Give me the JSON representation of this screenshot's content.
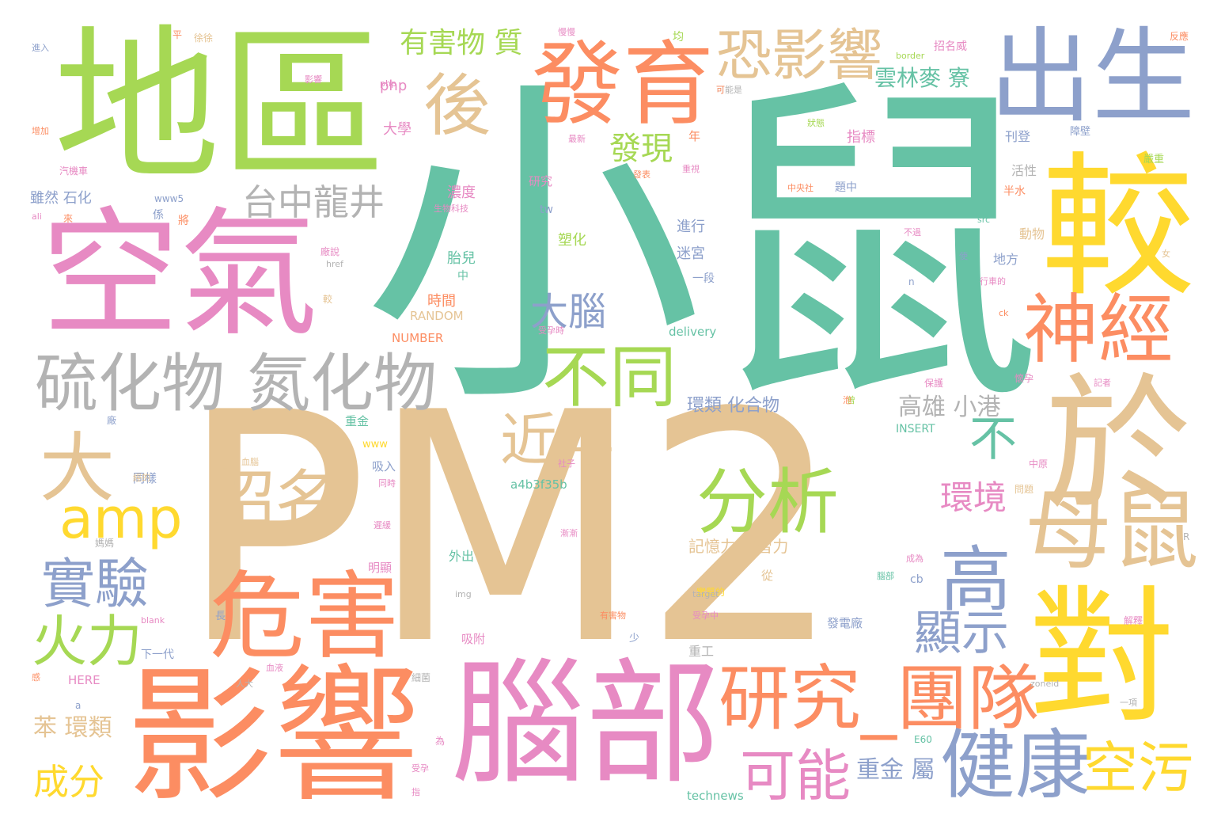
{
  "palette": {
    "green": "#66c2a5",
    "orange": "#fc8d62",
    "blue": "#8da0cb",
    "pink": "#e78ac3",
    "lime": "#a6d854",
    "yellow": "#ffd92f",
    "tan": "#e5c494",
    "gray": "#b3b3b3"
  },
  "words": [
    {
      "text": "PM2",
      "color": "tan"
    },
    {
      "text": "小鼠",
      "color": "green"
    },
    {
      "text": "地區",
      "color": "lime"
    },
    {
      "text": "空氣",
      "color": "pink"
    },
    {
      "text": "影響",
      "color": "orange"
    },
    {
      "text": "腦部",
      "color": "pink"
    },
    {
      "text": "較",
      "color": "yellow"
    },
    {
      "text": "於",
      "color": "tan"
    },
    {
      "text": "對",
      "color": "yellow"
    },
    {
      "text": "出生",
      "color": "blue"
    },
    {
      "text": "危害",
      "color": "orange"
    },
    {
      "text": "發育",
      "color": "orange"
    },
    {
      "text": "硫化物",
      "color": "gray"
    },
    {
      "text": "氮化物",
      "color": "gray"
    },
    {
      "text": "恐影響",
      "color": "tan"
    },
    {
      "text": "後",
      "color": "tan"
    },
    {
      "text": "神經",
      "color": "orange"
    },
    {
      "text": "母鼠",
      "color": "tan"
    },
    {
      "text": "研究_團隊",
      "color": "orange"
    },
    {
      "text": "健康",
      "color": "blue"
    },
    {
      "text": "分析",
      "color": "lime"
    },
    {
      "text": "不同",
      "color": "lime"
    },
    {
      "text": "高",
      "color": "blue"
    },
    {
      "text": "大",
      "color": "tan"
    },
    {
      "text": "amp",
      "color": "yellow"
    },
    {
      "text": "招名",
      "color": "tan"
    },
    {
      "text": "近年",
      "color": "tan"
    },
    {
      "text": "實驗",
      "color": "blue"
    },
    {
      "text": "火力",
      "color": "lime"
    },
    {
      "text": "台中龍井",
      "color": "gray"
    },
    {
      "text": "可能",
      "color": "pink"
    },
    {
      "text": "空污",
      "color": "yellow"
    },
    {
      "text": "顯示",
      "color": "blue"
    },
    {
      "text": "大腦",
      "color": "blue"
    },
    {
      "text": "環境",
      "color": "pink"
    },
    {
      "text": "不",
      "color": "green"
    },
    {
      "text": "發現",
      "color": "lime"
    },
    {
      "text": "有害物 質",
      "color": "lime"
    },
    {
      "text": "雲林麥 寮",
      "color": "green"
    },
    {
      "text": "高雄 小港",
      "color": "gray"
    },
    {
      "text": "成分",
      "color": "yellow"
    },
    {
      "text": "重金 屬",
      "color": "blue"
    },
    {
      "text": "苯 環類",
      "color": "tan"
    },
    {
      "text": "記憶力 學習力",
      "color": "tan"
    },
    {
      "text": "環類 化合物",
      "color": "blue"
    },
    {
      "text": "時間",
      "color": "orange"
    },
    {
      "text": "濃度",
      "color": "pink"
    },
    {
      "text": "指標",
      "color": "pink"
    },
    {
      "text": "刊登",
      "color": "blue"
    },
    {
      "text": "雖然 石化",
      "color": "blue"
    },
    {
      "text": "php",
      "color": "pink"
    },
    {
      "text": "大學",
      "color": "pink"
    },
    {
      "text": "胎兒",
      "color": "green"
    },
    {
      "text": "塑化",
      "color": "lime"
    },
    {
      "text": "進行",
      "color": "blue"
    },
    {
      "text": "迷宮",
      "color": "blue"
    },
    {
      "text": "動物",
      "color": "tan"
    },
    {
      "text": "地方",
      "color": "blue"
    },
    {
      "text": "活性",
      "color": "gray"
    },
    {
      "text": "研究",
      "color": "pink"
    },
    {
      "text": "RANDOM",
      "color": "tan"
    },
    {
      "text": "NUMBER",
      "color": "orange"
    },
    {
      "text": "delivery",
      "color": "green"
    },
    {
      "text": "a4b3f35b",
      "color": "green"
    },
    {
      "text": "INSERT",
      "color": "green"
    },
    {
      "text": "HERE",
      "color": "pink"
    },
    {
      "text": "technews",
      "color": "green"
    },
    {
      "text": "www5",
      "color": "blue"
    },
    {
      "text": "border",
      "color": "lime"
    },
    {
      "text": "外出",
      "color": "green"
    },
    {
      "text": "明顯",
      "color": "pink"
    },
    {
      "text": "吸入",
      "color": "blue"
    },
    {
      "text": "重工",
      "color": "gray"
    },
    {
      "text": "發電廠",
      "color": "blue"
    },
    {
      "text": "吸附",
      "color": "pink"
    },
    {
      "text": "下一代",
      "color": "blue"
    },
    {
      "text": "同樣",
      "color": "blue"
    },
    {
      "text": "一段",
      "color": "blue"
    },
    {
      "text": "從",
      "color": "tan"
    },
    {
      "text": "cb",
      "color": "blue"
    },
    {
      "text": "實質的",
      "color": "yellow"
    },
    {
      "text": "中原",
      "color": "pink"
    },
    {
      "text": "問題",
      "color": "tan"
    },
    {
      "text": "中",
      "color": "green"
    },
    {
      "text": "php",
      "color": "pink"
    },
    {
      "text": "tw",
      "color": "blue"
    },
    {
      "text": "重金",
      "color": "green"
    },
    {
      "text": "www",
      "color": "yellow"
    },
    {
      "text": "a",
      "color": "blue"
    },
    {
      "text": "年",
      "color": "orange"
    },
    {
      "text": "半水",
      "color": "orange"
    },
    {
      "text": "障壁",
      "color": "blue"
    },
    {
      "text": "嚴重",
      "color": "lime"
    },
    {
      "text": "反應",
      "color": "orange"
    },
    {
      "text": "進入",
      "color": "blue"
    },
    {
      "text": "汽機車",
      "color": "pink"
    },
    {
      "text": "增加",
      "color": "orange"
    },
    {
      "text": "招名威",
      "color": "pink"
    },
    {
      "text": "均",
      "color": "lime"
    },
    {
      "text": "img",
      "color": "gray"
    },
    {
      "text": "blank",
      "color": "pink"
    },
    {
      "text": "src",
      "color": "green"
    },
    {
      "text": "target",
      "color": "gray"
    },
    {
      "text": "href",
      "color": "gray"
    },
    {
      "text": "zoneid",
      "color": "gray"
    },
    {
      "text": "同時",
      "color": "pink"
    },
    {
      "text": "解釋",
      "color": "pink"
    },
    {
      "text": "ck",
      "color": "orange"
    },
    {
      "text": "R",
      "color": "gray"
    },
    {
      "text": "n",
      "color": "blue"
    },
    {
      "text": "一項",
      "color": "gray"
    },
    {
      "text": "細菌",
      "color": "gray"
    },
    {
      "text": "少",
      "color": "blue"
    },
    {
      "text": "長",
      "color": "blue"
    },
    {
      "text": "為",
      "color": "pink"
    },
    {
      "text": "係",
      "color": "blue"
    },
    {
      "text": "將",
      "color": "orange"
    },
    {
      "text": "較",
      "color": "tan"
    },
    {
      "text": "廠",
      "color": "blue"
    },
    {
      "text": "懷孕",
      "color": "pink"
    },
    {
      "text": "保護",
      "color": "pink"
    },
    {
      "text": "中央社",
      "color": "orange"
    },
    {
      "text": "題中",
      "color": "blue"
    },
    {
      "text": "生物科技",
      "color": "pink"
    },
    {
      "text": "有害物",
      "color": "orange"
    },
    {
      "text": "受孕時",
      "color": "pink"
    },
    {
      "text": "人大",
      "color": "gray"
    },
    {
      "text": "可能是",
      "color": "gray"
    },
    {
      "text": "媽媽",
      "color": "gray"
    },
    {
      "text": "行車的",
      "color": "pink"
    },
    {
      "text": "社子",
      "color": "pink"
    },
    {
      "text": "血腦",
      "color": "tan"
    },
    {
      "text": "使",
      "color": "blue"
    },
    {
      "text": "女",
      "color": "tan"
    },
    {
      "text": "受孕中",
      "color": "pink"
    },
    {
      "text": "成為",
      "color": "pink"
    },
    {
      "text": "腦部",
      "color": "green"
    },
    {
      "text": "記者",
      "color": "pink"
    },
    {
      "text": "最新",
      "color": "pink"
    },
    {
      "text": "發表",
      "color": "orange"
    },
    {
      "text": "廠說",
      "color": "pink"
    },
    {
      "text": "經的",
      "color": "tan"
    },
    {
      "text": "漸漸",
      "color": "pink"
    },
    {
      "text": "遲緩",
      "color": "pink"
    },
    {
      "text": "感",
      "color": "orange"
    },
    {
      "text": "可",
      "color": "orange"
    },
    {
      "text": "重視",
      "color": "pink"
    },
    {
      "text": "影響",
      "color": "pink"
    },
    {
      "text": "受孕",
      "color": "pink"
    },
    {
      "text": "平",
      "color": "orange"
    },
    {
      "text": "徐徐",
      "color": "tan"
    },
    {
      "text": "狀態",
      "color": "lime"
    },
    {
      "text": "曾",
      "color": "lime"
    },
    {
      "text": "血液",
      "color": "pink"
    },
    {
      "text": "慢慢",
      "color": "pink"
    },
    {
      "text": "不過",
      "color": "pink"
    },
    {
      "text": "E60",
      "color": "green"
    },
    {
      "text": "泡",
      "color": "orange"
    },
    {
      "text": "ali",
      "color": "pink"
    },
    {
      "text": "來",
      "color": "orange"
    },
    {
      "text": "指",
      "color": "pink"
    }
  ]
}
